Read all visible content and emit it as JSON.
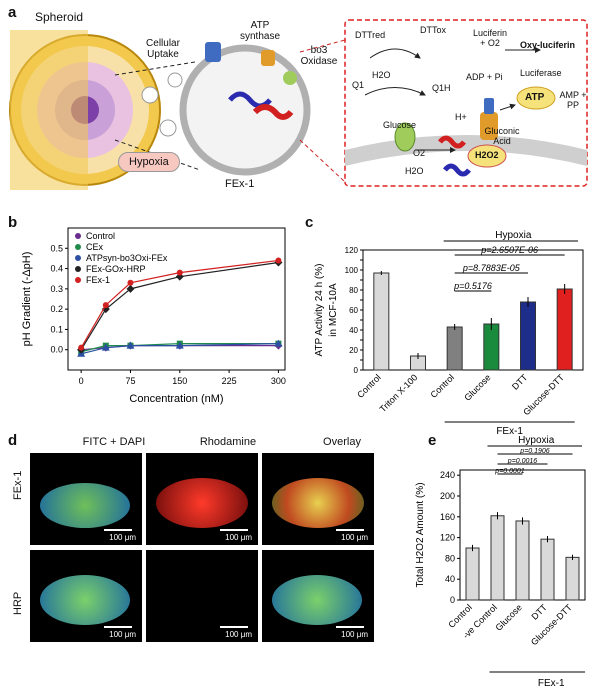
{
  "panel_a": {
    "letter": "a",
    "spheroid": "Spheroid",
    "cellular_uptake": "Cellular Uptake",
    "atp_synthase": "ATP synthase",
    "bo3_oxidase": "bo3 Oxidase",
    "hypoxia": "Hypoxia",
    "fex1": "FEx-1",
    "reactions": {
      "dtt_red": "DTTred",
      "dtt_ox": "DTTox",
      "q1": "Q1",
      "h2o": "H2O",
      "q1h": "Q1H",
      "luciferin_o2": "Luciferin + O2",
      "oxy_luciferin": "Oxy-luciferin",
      "adp_pi": "ADP + Pi",
      "luciferase": "Luciferase",
      "atp": "ATP",
      "amp_pp": "AMP + PP",
      "glucose": "Glucose",
      "h_plus": "H+",
      "gluconic_acid": "Gluconic Acid",
      "o2": "O2",
      "h2o2": "H2O2",
      "h2o_b": "H2O"
    }
  },
  "panel_b": {
    "letter": "b",
    "ylabel": "pH Gradient (-ΔpH)",
    "xlabel": "Concentration (nM)",
    "legend": [
      "Control",
      "CEx",
      "ATPsyn-bo3Oxi-FEx",
      "FEx-GOx-HRP",
      "FEx-1"
    ]
  },
  "panel_c": {
    "letter": "c",
    "ylabel": "ATP Activity 24 h (%)",
    "ylabel2": "in MCF-10A",
    "hypoxia": "Hypoxia",
    "pvalues": [
      "p=2.6507E-06",
      "p=8.7883E-05",
      "p=0.5176"
    ],
    "group_label": "FEx-1"
  },
  "panel_d": {
    "letter": "d",
    "columns": [
      "FITC + DAPI",
      "Rhodamine",
      "Overlay"
    ],
    "rows": [
      "FEx-1",
      "HRP"
    ],
    "scale": "100 μm"
  },
  "panel_e": {
    "letter": "e",
    "ylabel": "Total H2O2 Amount (%)",
    "hypoxia": "Hypoxia",
    "pvalues": [
      "p=0.1906",
      "p=0.0016",
      "p=0.0001"
    ],
    "group_label": "FEx-1"
  },
  "chart_data": [
    {
      "type": "line",
      "panel": "b",
      "xlabel": "Concentration (nM)",
      "ylabel": "pH Gradient (-ΔpH)",
      "xlim": [
        -20,
        310
      ],
      "ylim": [
        -0.1,
        0.6
      ],
      "xticks": [
        0,
        75,
        150,
        225,
        300
      ],
      "yticks": [
        0.0,
        0.1,
        0.2,
        0.3,
        0.4,
        0.5
      ],
      "x": [
        0,
        37.5,
        75,
        150,
        300
      ],
      "series": [
        {
          "name": "Control",
          "color": "#6a2c8e",
          "marker": "diamond",
          "values": [
            0.0,
            0.01,
            0.02,
            0.02,
            0.02
          ]
        },
        {
          "name": "CEx",
          "color": "#1f8a4c",
          "marker": "square",
          "values": [
            -0.01,
            0.02,
            0.02,
            0.03,
            0.03
          ]
        },
        {
          "name": "ATPsyn-bo3Oxi-FEx",
          "color": "#2d4fa3",
          "marker": "triangle",
          "values": [
            -0.02,
            0.01,
            0.02,
            0.02,
            0.03
          ]
        },
        {
          "name": "FEx-GOx-HRP",
          "color": "#222222",
          "marker": "diamond",
          "values": [
            0.0,
            0.2,
            0.3,
            0.36,
            0.43
          ]
        },
        {
          "name": "FEx-1",
          "color": "#d32020",
          "marker": "circle",
          "values": [
            0.01,
            0.22,
            0.33,
            0.38,
            0.44
          ]
        }
      ]
    },
    {
      "type": "bar",
      "panel": "c",
      "ylabel": "ATP Activity 24 h (%) in MCF-10A",
      "ylim": [
        0,
        120
      ],
      "yticks": [
        0,
        10,
        20,
        30,
        40,
        50,
        60,
        70,
        80,
        90,
        100,
        110,
        120
      ],
      "categories": [
        "Control",
        "Triton X-100",
        "Control",
        "Glucose",
        "DTT",
        "Glucose-DTT"
      ],
      "values": [
        97,
        14,
        43,
        46,
        68,
        81
      ],
      "colors": [
        "#d9d9d9",
        "#d9d9d9",
        "#808080",
        "#1a8a3c",
        "#1f2d8a",
        "#e01f1f"
      ],
      "errors": [
        2,
        3,
        3,
        6,
        5,
        5
      ]
    },
    {
      "type": "bar",
      "panel": "e",
      "ylabel": "Total H2O2 Amount (%)",
      "ylim": [
        0,
        250
      ],
      "yticks": [
        0,
        40,
        80,
        120,
        160,
        200,
        240
      ],
      "categories": [
        "Control",
        "-ve Control",
        "Glucose",
        "DTT",
        "Glucose-DTT"
      ],
      "values": [
        100,
        162,
        152,
        117,
        82
      ],
      "colors": [
        "#d9d9d9",
        "#d9d9d9",
        "#d9d9d9",
        "#d9d9d9",
        "#d9d9d9"
      ],
      "errors": [
        6,
        7,
        7,
        6,
        5
      ]
    }
  ]
}
